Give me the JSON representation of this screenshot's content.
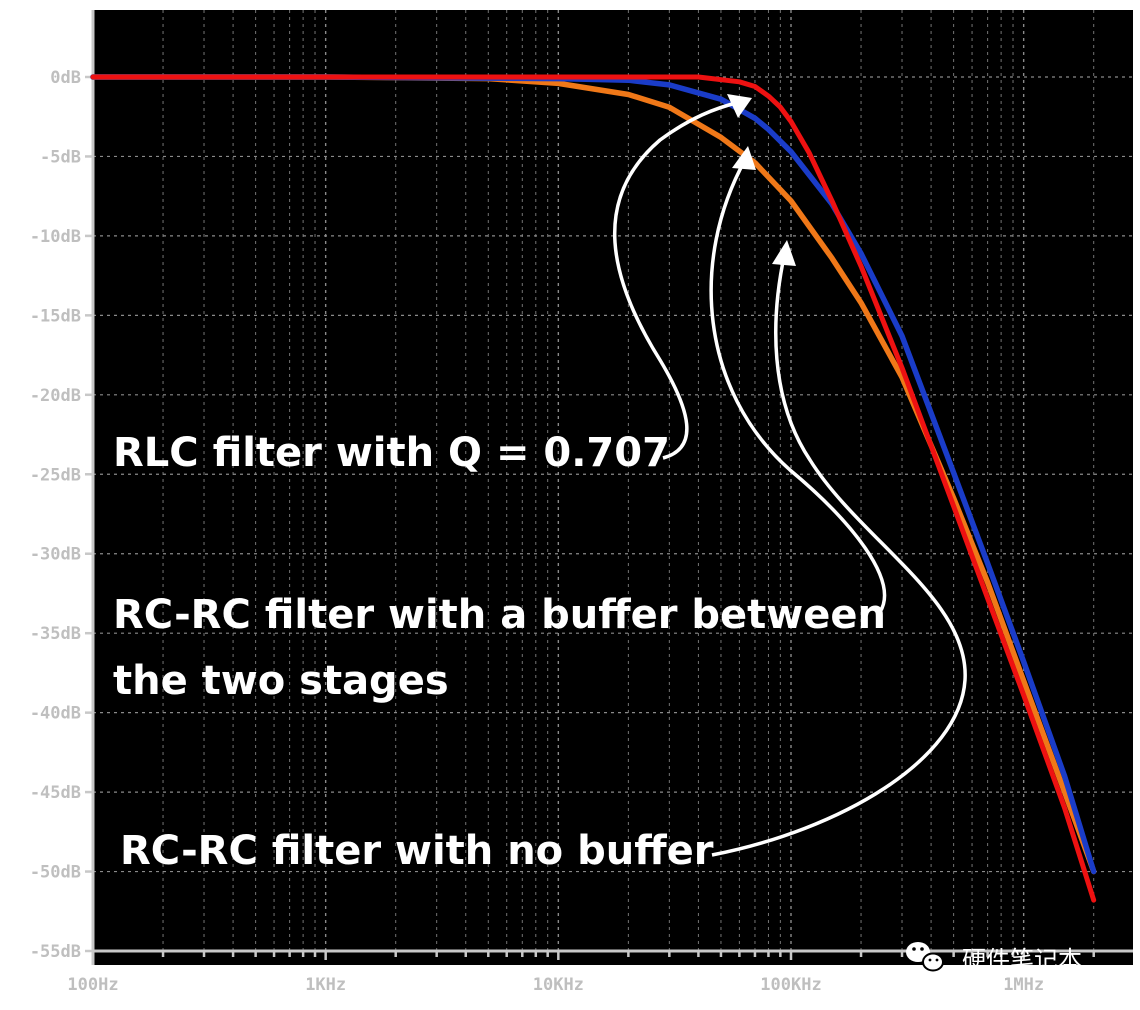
{
  "chart_data": {
    "type": "line",
    "title": "",
    "xlabel": "",
    "ylabel": "",
    "x_scale": "log",
    "xlim": [
      100,
      2000000
    ],
    "ylim": [
      -55,
      0
    ],
    "grid": true,
    "x_tick_labels": [
      "100Hz",
      "1KHz",
      "10KHz",
      "100KHz",
      "1MHz"
    ],
    "x_tick_values": [
      100,
      1000,
      10000,
      100000,
      1000000
    ],
    "y_tick_labels": [
      "0dB",
      "-5dB",
      "-10dB",
      "-15dB",
      "-20dB",
      "-25dB",
      "-30dB",
      "-35dB",
      "-40dB",
      "-45dB",
      "-50dB",
      "-55dB"
    ],
    "y_tick_values": [
      0,
      -5,
      -10,
      -15,
      -20,
      -25,
      -30,
      -35,
      -40,
      -45,
      -50,
      -55
    ],
    "series": [
      {
        "color": "#f07818",
        "x": [
          100,
          1000,
          5000,
          10000,
          20000,
          30000,
          50000,
          70000,
          100000,
          150000,
          200000,
          300000,
          500000,
          700000,
          1000000,
          1500000,
          2000000
        ],
        "y": [
          0,
          0,
          -0.1,
          -0.4,
          -1.1,
          -1.9,
          -3.8,
          -5.4,
          -7.8,
          -11.4,
          -14.2,
          -18.9,
          -26.5,
          -31.8,
          -38.0,
          -45.0,
          -50.0
        ]
      },
      {
        "color": "#1a3cc8",
        "x": [
          100,
          1000,
          10000,
          20000,
          30000,
          50000,
          70000,
          80000,
          100000,
          150000,
          200000,
          300000,
          500000,
          700000,
          1000000,
          1500000,
          2000000
        ],
        "y": [
          0,
          0,
          -0.1,
          -0.2,
          -0.5,
          -1.4,
          -2.6,
          -3.3,
          -4.7,
          -8.0,
          -11.1,
          -16.3,
          -24.9,
          -30.6,
          -36.8,
          -44.0,
          -50.0
        ]
      },
      {
        "color": "#ee1111",
        "x": [
          100,
          1000,
          10000,
          40000,
          60000,
          70000,
          80000,
          90000,
          100000,
          120000,
          150000,
          200000,
          300000,
          500000,
          700000,
          1000000,
          1500000,
          2000000
        ],
        "y": [
          0,
          0,
          0,
          0,
          -0.3,
          -0.6,
          -1.2,
          -1.9,
          -2.8,
          -4.8,
          -7.8,
          -11.9,
          -18.3,
          -27.0,
          -32.8,
          -38.9,
          -46.0,
          -51.8
        ]
      }
    ],
    "annotations": [
      {
        "text": "RLC filter with Q = 0.707",
        "lines": [
          "RLC filter with Q = 0.707"
        ]
      },
      {
        "text": "RC-RC filter with a buffer between the two stages",
        "lines": [
          "RC-RC filter with a buffer between",
          "the two stages"
        ]
      },
      {
        "text": "RC-RC filter with no buffer",
        "lines": [
          "RC-RC filter with no buffer"
        ]
      }
    ]
  },
  "watermark": {
    "text": "硬件笔记本",
    "icon": "wechat-icon"
  },
  "colors": {
    "background": "#000000",
    "grid": "#8a8a8a",
    "axis": "#c8c8c8",
    "tick_text": "#bfbfbf",
    "annotation": "#ffffff"
  }
}
